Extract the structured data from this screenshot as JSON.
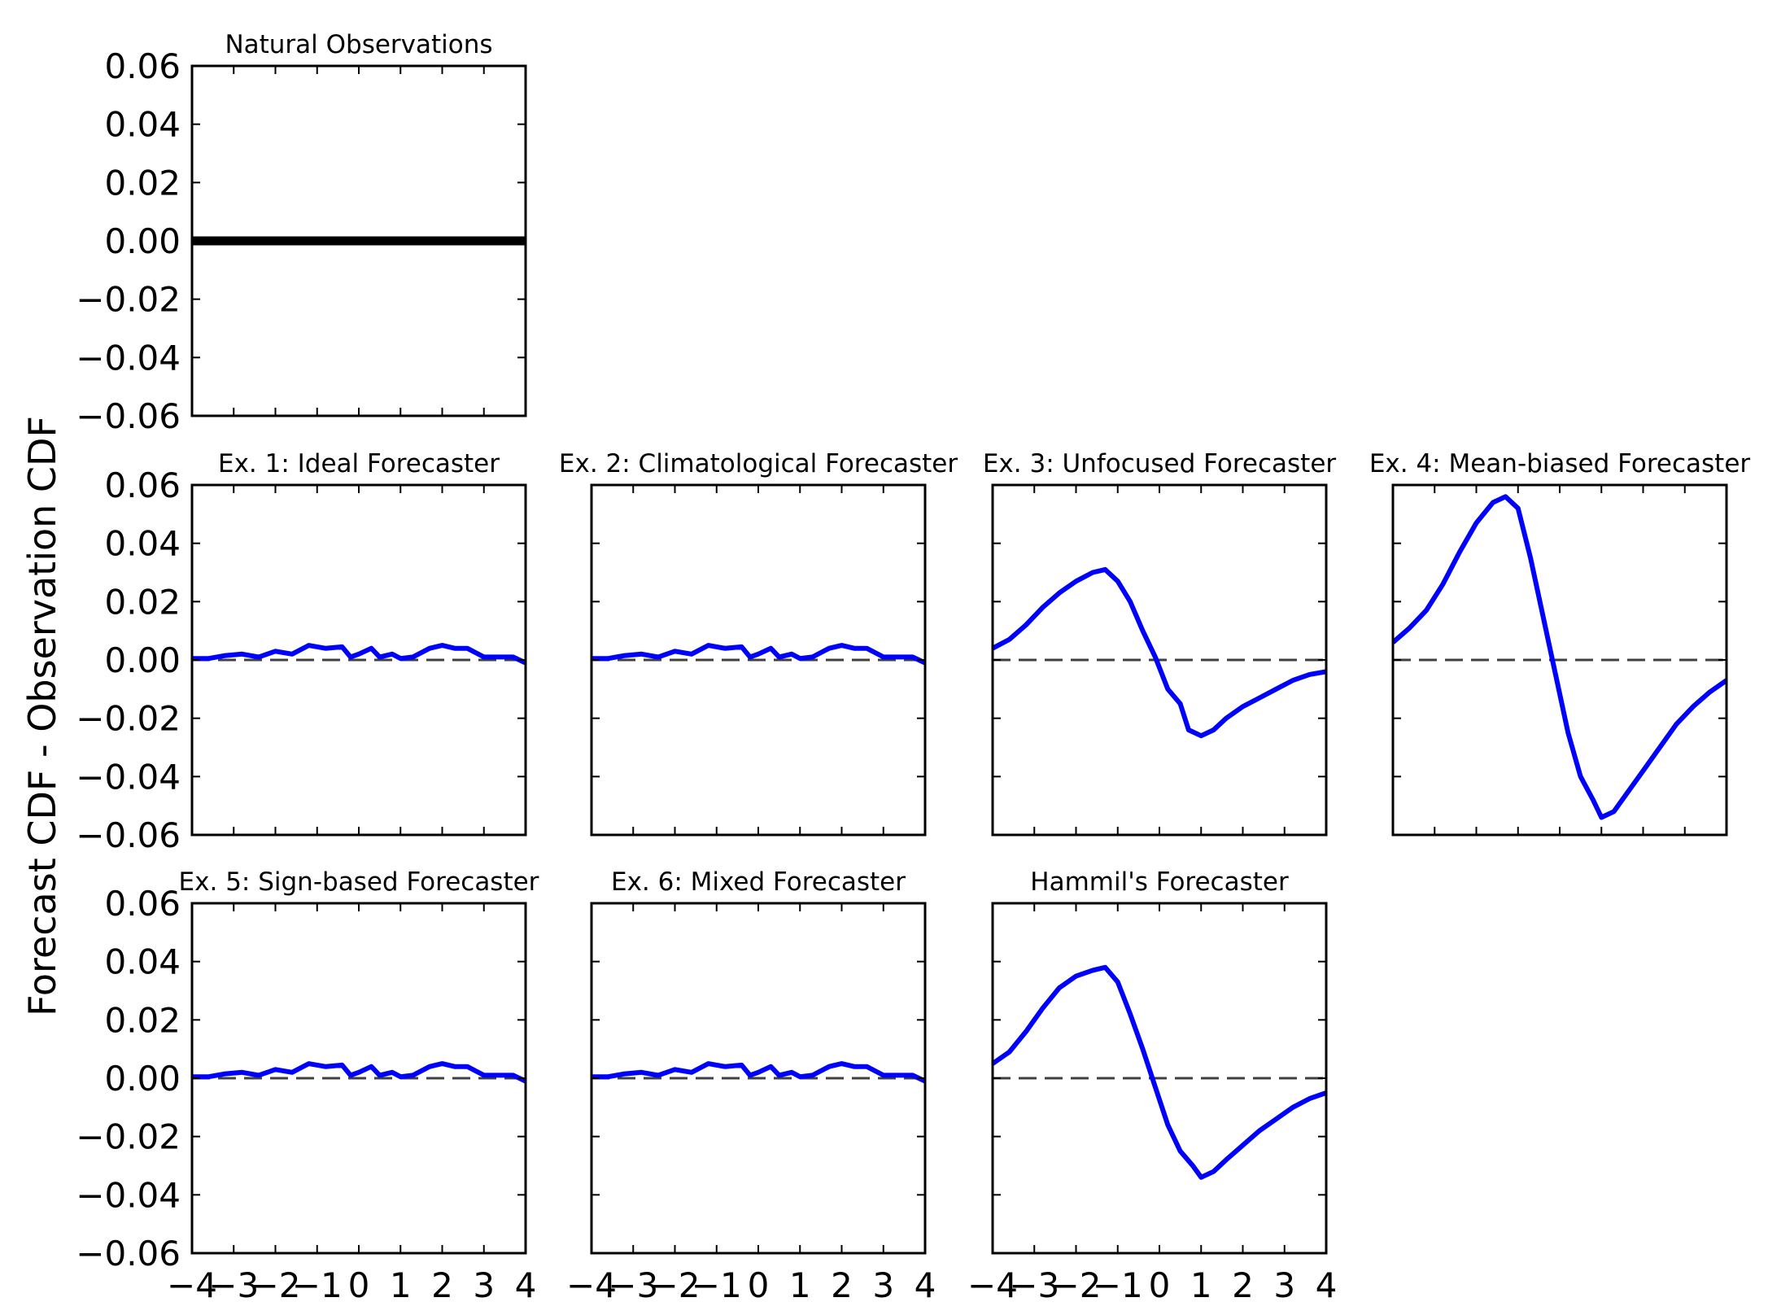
{
  "figure": {
    "ylabel": "Forecast CDF - Observation CDF",
    "colors": {
      "series": "#0000ff",
      "reference": "#000000",
      "zero_line": "#404040",
      "axes": "#000000"
    }
  },
  "chart_data": [
    {
      "type": "line",
      "title": "Natural Observations",
      "xlim": [
        -4,
        4
      ],
      "ylim": [
        -0.06,
        0.06
      ],
      "yticks": [
        "0.06",
        "0.04",
        "0.02",
        "0.00",
        "−0.02",
        "−0.04",
        "−0.06"
      ],
      "xticks": [],
      "zero_line": false,
      "series": [
        {
          "style": "reference",
          "x": [
            -4,
            4
          ],
          "y": [
            0,
            0
          ]
        }
      ]
    },
    {
      "type": "line",
      "title": "Ex. 1: Ideal Forecaster",
      "xlim": [
        -4,
        4
      ],
      "ylim": [
        -0.06,
        0.06
      ],
      "yticks": [
        "0.06",
        "0.04",
        "0.02",
        "0.00",
        "−0.02",
        "−0.04",
        "−0.06"
      ],
      "xticks": [],
      "zero_line": true,
      "series": [
        {
          "style": "forecast",
          "x": [
            -4,
            -3.6,
            -3.2,
            -2.8,
            -2.4,
            -2,
            -1.6,
            -1.2,
            -0.8,
            -0.4,
            -0.2,
            0,
            0.3,
            0.5,
            0.8,
            1,
            1.3,
            1.7,
            2,
            2.3,
            2.6,
            3,
            3.4,
            3.7,
            4
          ],
          "y": [
            0.0005,
            0.0005,
            0.0015,
            0.002,
            0.001,
            0.003,
            0.002,
            0.005,
            0.004,
            0.0045,
            0.001,
            0.002,
            0.004,
            0.001,
            0.002,
            0.0005,
            0.001,
            0.004,
            0.005,
            0.004,
            0.004,
            0.001,
            0.001,
            0.001,
            -0.001
          ]
        }
      ]
    },
    {
      "type": "line",
      "title": "Ex. 2: Climatological Forecaster",
      "xlim": [
        -4,
        4
      ],
      "ylim": [
        -0.06,
        0.06
      ],
      "yticks": [],
      "xticks": [],
      "zero_line": true,
      "series": [
        {
          "style": "forecast",
          "x": [
            -4,
            -3.6,
            -3.2,
            -2.8,
            -2.4,
            -2,
            -1.6,
            -1.2,
            -0.8,
            -0.4,
            -0.2,
            0,
            0.3,
            0.5,
            0.8,
            1,
            1.3,
            1.7,
            2,
            2.3,
            2.6,
            3,
            3.4,
            3.7,
            4
          ],
          "y": [
            0.0005,
            0.0005,
            0.0015,
            0.002,
            0.001,
            0.003,
            0.002,
            0.005,
            0.004,
            0.0045,
            0.001,
            0.002,
            0.004,
            0.001,
            0.002,
            0.0005,
            0.001,
            0.004,
            0.005,
            0.004,
            0.004,
            0.001,
            0.001,
            0.001,
            -0.001
          ]
        }
      ]
    },
    {
      "type": "line",
      "title": "Ex. 3: Unfocused Forecaster",
      "xlim": [
        -4,
        4
      ],
      "ylim": [
        -0.06,
        0.06
      ],
      "yticks": [],
      "xticks": [],
      "zero_line": true,
      "series": [
        {
          "style": "forecast",
          "x": [
            -4,
            -3.6,
            -3.2,
            -2.8,
            -2.4,
            -2,
            -1.6,
            -1.3,
            -1,
            -0.7,
            -0.4,
            -0.1,
            0.2,
            0.5,
            0.7,
            1,
            1.3,
            1.6,
            2,
            2.4,
            2.8,
            3.2,
            3.6,
            4
          ],
          "y": [
            0.004,
            0.007,
            0.012,
            0.018,
            0.023,
            0.027,
            0.03,
            0.031,
            0.027,
            0.02,
            0.01,
            0.001,
            -0.01,
            -0.015,
            -0.024,
            -0.026,
            -0.024,
            -0.02,
            -0.016,
            -0.013,
            -0.01,
            -0.007,
            -0.005,
            -0.004
          ]
        }
      ]
    },
    {
      "type": "line",
      "title": "Ex. 4: Mean-biased Forecaster",
      "xlim": [
        -4,
        4
      ],
      "ylim": [
        -0.06,
        0.06
      ],
      "yticks": [],
      "xticks": [],
      "zero_line": true,
      "series": [
        {
          "style": "forecast",
          "x": [
            -4,
            -3.6,
            -3.2,
            -2.8,
            -2.4,
            -2,
            -1.6,
            -1.3,
            -1,
            -0.7,
            -0.4,
            -0.1,
            0.2,
            0.5,
            0.8,
            1,
            1.3,
            1.6,
            2,
            2.4,
            2.8,
            3.2,
            3.6,
            4
          ],
          "y": [
            0.006,
            0.011,
            0.017,
            0.026,
            0.037,
            0.047,
            0.054,
            0.056,
            0.052,
            0.035,
            0.015,
            -0.005,
            -0.025,
            -0.04,
            -0.048,
            -0.054,
            -0.052,
            -0.046,
            -0.038,
            -0.03,
            -0.022,
            -0.016,
            -0.011,
            -0.007
          ]
        }
      ]
    },
    {
      "type": "line",
      "title": "Ex. 5: Sign-based Forecaster",
      "xlim": [
        -4,
        4
      ],
      "ylim": [
        -0.06,
        0.06
      ],
      "yticks": [
        "0.06",
        "0.04",
        "0.02",
        "0.00",
        "−0.02",
        "−0.04",
        "−0.06"
      ],
      "xticks": [
        "−4",
        "−3",
        "−2",
        "−1",
        "0",
        "1",
        "2",
        "3",
        "4"
      ],
      "zero_line": true,
      "series": [
        {
          "style": "forecast",
          "x": [
            -4,
            -3.6,
            -3.2,
            -2.8,
            -2.4,
            -2,
            -1.6,
            -1.2,
            -0.8,
            -0.4,
            -0.2,
            0,
            0.3,
            0.5,
            0.8,
            1,
            1.3,
            1.7,
            2,
            2.3,
            2.6,
            3,
            3.4,
            3.7,
            4
          ],
          "y": [
            0.0005,
            0.0005,
            0.0015,
            0.002,
            0.001,
            0.003,
            0.002,
            0.005,
            0.004,
            0.0045,
            0.001,
            0.002,
            0.004,
            0.001,
            0.002,
            0.0005,
            0.001,
            0.004,
            0.005,
            0.004,
            0.004,
            0.001,
            0.001,
            0.001,
            -0.001
          ]
        }
      ]
    },
    {
      "type": "line",
      "title": "Ex. 6: Mixed Forecaster",
      "xlim": [
        -4,
        4
      ],
      "ylim": [
        -0.06,
        0.06
      ],
      "yticks": [],
      "xticks": [
        "−4",
        "−3",
        "−2",
        "−1",
        "0",
        "1",
        "2",
        "3",
        "4"
      ],
      "zero_line": true,
      "series": [
        {
          "style": "forecast",
          "x": [
            -4,
            -3.6,
            -3.2,
            -2.8,
            -2.4,
            -2,
            -1.6,
            -1.2,
            -0.8,
            -0.4,
            -0.2,
            0,
            0.3,
            0.5,
            0.8,
            1,
            1.3,
            1.7,
            2,
            2.3,
            2.6,
            3,
            3.4,
            3.7,
            4
          ],
          "y": [
            0.0005,
            0.0005,
            0.0015,
            0.002,
            0.001,
            0.003,
            0.002,
            0.005,
            0.004,
            0.0045,
            0.001,
            0.002,
            0.004,
            0.001,
            0.002,
            0.0005,
            0.001,
            0.004,
            0.005,
            0.004,
            0.004,
            0.001,
            0.001,
            0.001,
            -0.001
          ]
        }
      ]
    },
    {
      "type": "line",
      "title": "Hammil's Forecaster",
      "xlim": [
        -4,
        4
      ],
      "ylim": [
        -0.06,
        0.06
      ],
      "yticks": [],
      "xticks": [
        "−4",
        "−3",
        "−2",
        "−1",
        "0",
        "1",
        "2",
        "3",
        "4"
      ],
      "zero_line": true,
      "series": [
        {
          "style": "forecast",
          "x": [
            -4,
            -3.6,
            -3.2,
            -2.8,
            -2.4,
            -2,
            -1.6,
            -1.3,
            -1,
            -0.7,
            -0.4,
            -0.1,
            0.2,
            0.5,
            0.8,
            1,
            1.3,
            1.6,
            2,
            2.4,
            2.8,
            3.2,
            3.6,
            4
          ],
          "y": [
            0.005,
            0.009,
            0.016,
            0.024,
            0.031,
            0.035,
            0.037,
            0.038,
            0.033,
            0.022,
            0.01,
            -0.003,
            -0.016,
            -0.025,
            -0.03,
            -0.034,
            -0.032,
            -0.028,
            -0.023,
            -0.018,
            -0.014,
            -0.01,
            -0.007,
            -0.005
          ]
        }
      ]
    }
  ]
}
